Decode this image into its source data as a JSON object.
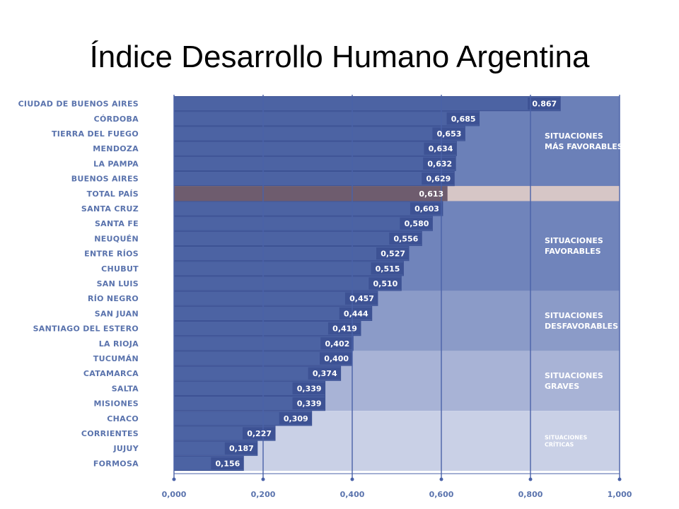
{
  "title": "Índice Desarrollo Humano Argentina",
  "chart_data": {
    "type": "bar",
    "orientation": "horizontal",
    "categories": [
      "CIUDAD DE BUENOS AIRES",
      "CÓRDOBA",
      "TIERRA DEL FUEGO",
      "MENDOZA",
      "LA PAMPA",
      "BUENOS AIRES",
      "TOTAL PAÍS",
      "SANTA CRUZ",
      "SANTA FE",
      "NEUQUÉN",
      "ENTRE RÍOS",
      "CHUBUT",
      "SAN LUIS",
      "RÍO NEGRO",
      "SAN JUAN",
      "SANTIAGO DEL ESTERO",
      "LA RIOJA",
      "TUCUMÁN",
      "CATAMARCA",
      "SALTA",
      "MISIONES",
      "CHACO",
      "CORRIENTES",
      "JUJUY",
      "FORMOSA"
    ],
    "values": [
      0.867,
      0.685,
      0.653,
      0.634,
      0.632,
      0.629,
      0.613,
      0.603,
      0.58,
      0.556,
      0.527,
      0.515,
      0.51,
      0.457,
      0.444,
      0.419,
      0.402,
      0.4,
      0.374,
      0.339,
      0.339,
      0.309,
      0.227,
      0.187,
      0.156
    ],
    "value_labels": [
      "0.867",
      "0,685",
      "0,653",
      "0,634",
      "0,632",
      "0,629",
      "0,613",
      "0,603",
      "0,580",
      "0,556",
      "0,527",
      "0,515",
      "0,510",
      "0,457",
      "0,444",
      "0,419",
      "0,402",
      "0,400",
      "0,374",
      "0,339",
      "0,339",
      "0,309",
      "0,227",
      "0,187",
      "0,156"
    ],
    "highlight_category": "TOTAL PAÍS",
    "xlim": [
      0,
      1
    ],
    "x_ticks": [
      0,
      0.2,
      0.4,
      0.6,
      0.8,
      1.0
    ],
    "x_tick_labels": [
      "0,000",
      "0,200",
      "0,400",
      "0,600",
      "0,800",
      "1,000"
    ],
    "zones": [
      {
        "lines": [
          "SITUACIONES",
          "MÁS FAVORABLES"
        ],
        "first": 0,
        "last": 5,
        "color": "#6b80b8"
      },
      {
        "lines": [
          "SITUACIONES",
          "FAVORABLES"
        ],
        "first": 7,
        "last": 12,
        "color": "#7084bb"
      },
      {
        "lines": [
          "SITUACIONES",
          "DESFAVORABLES"
        ],
        "first": 13,
        "last": 16,
        "color": "#8b9bc8"
      },
      {
        "lines": [
          "SITUACIONES",
          "GRAVES"
        ],
        "first": 17,
        "last": 20,
        "color": "#a8b3d6"
      },
      {
        "lines": [
          "SITUACIONES",
          "CRÍTICAS"
        ],
        "first": 21,
        "last": 24,
        "color": "#c9d0e6"
      }
    ],
    "colors": {
      "bar": "#4c63a3",
      "bar_edge": "#3d5294",
      "total_band": "#9c8790",
      "total_bar": "#6e5c6e",
      "total_right": "#d6c6c6",
      "grid": "#4a62a8",
      "label": "#5a73ad"
    }
  }
}
